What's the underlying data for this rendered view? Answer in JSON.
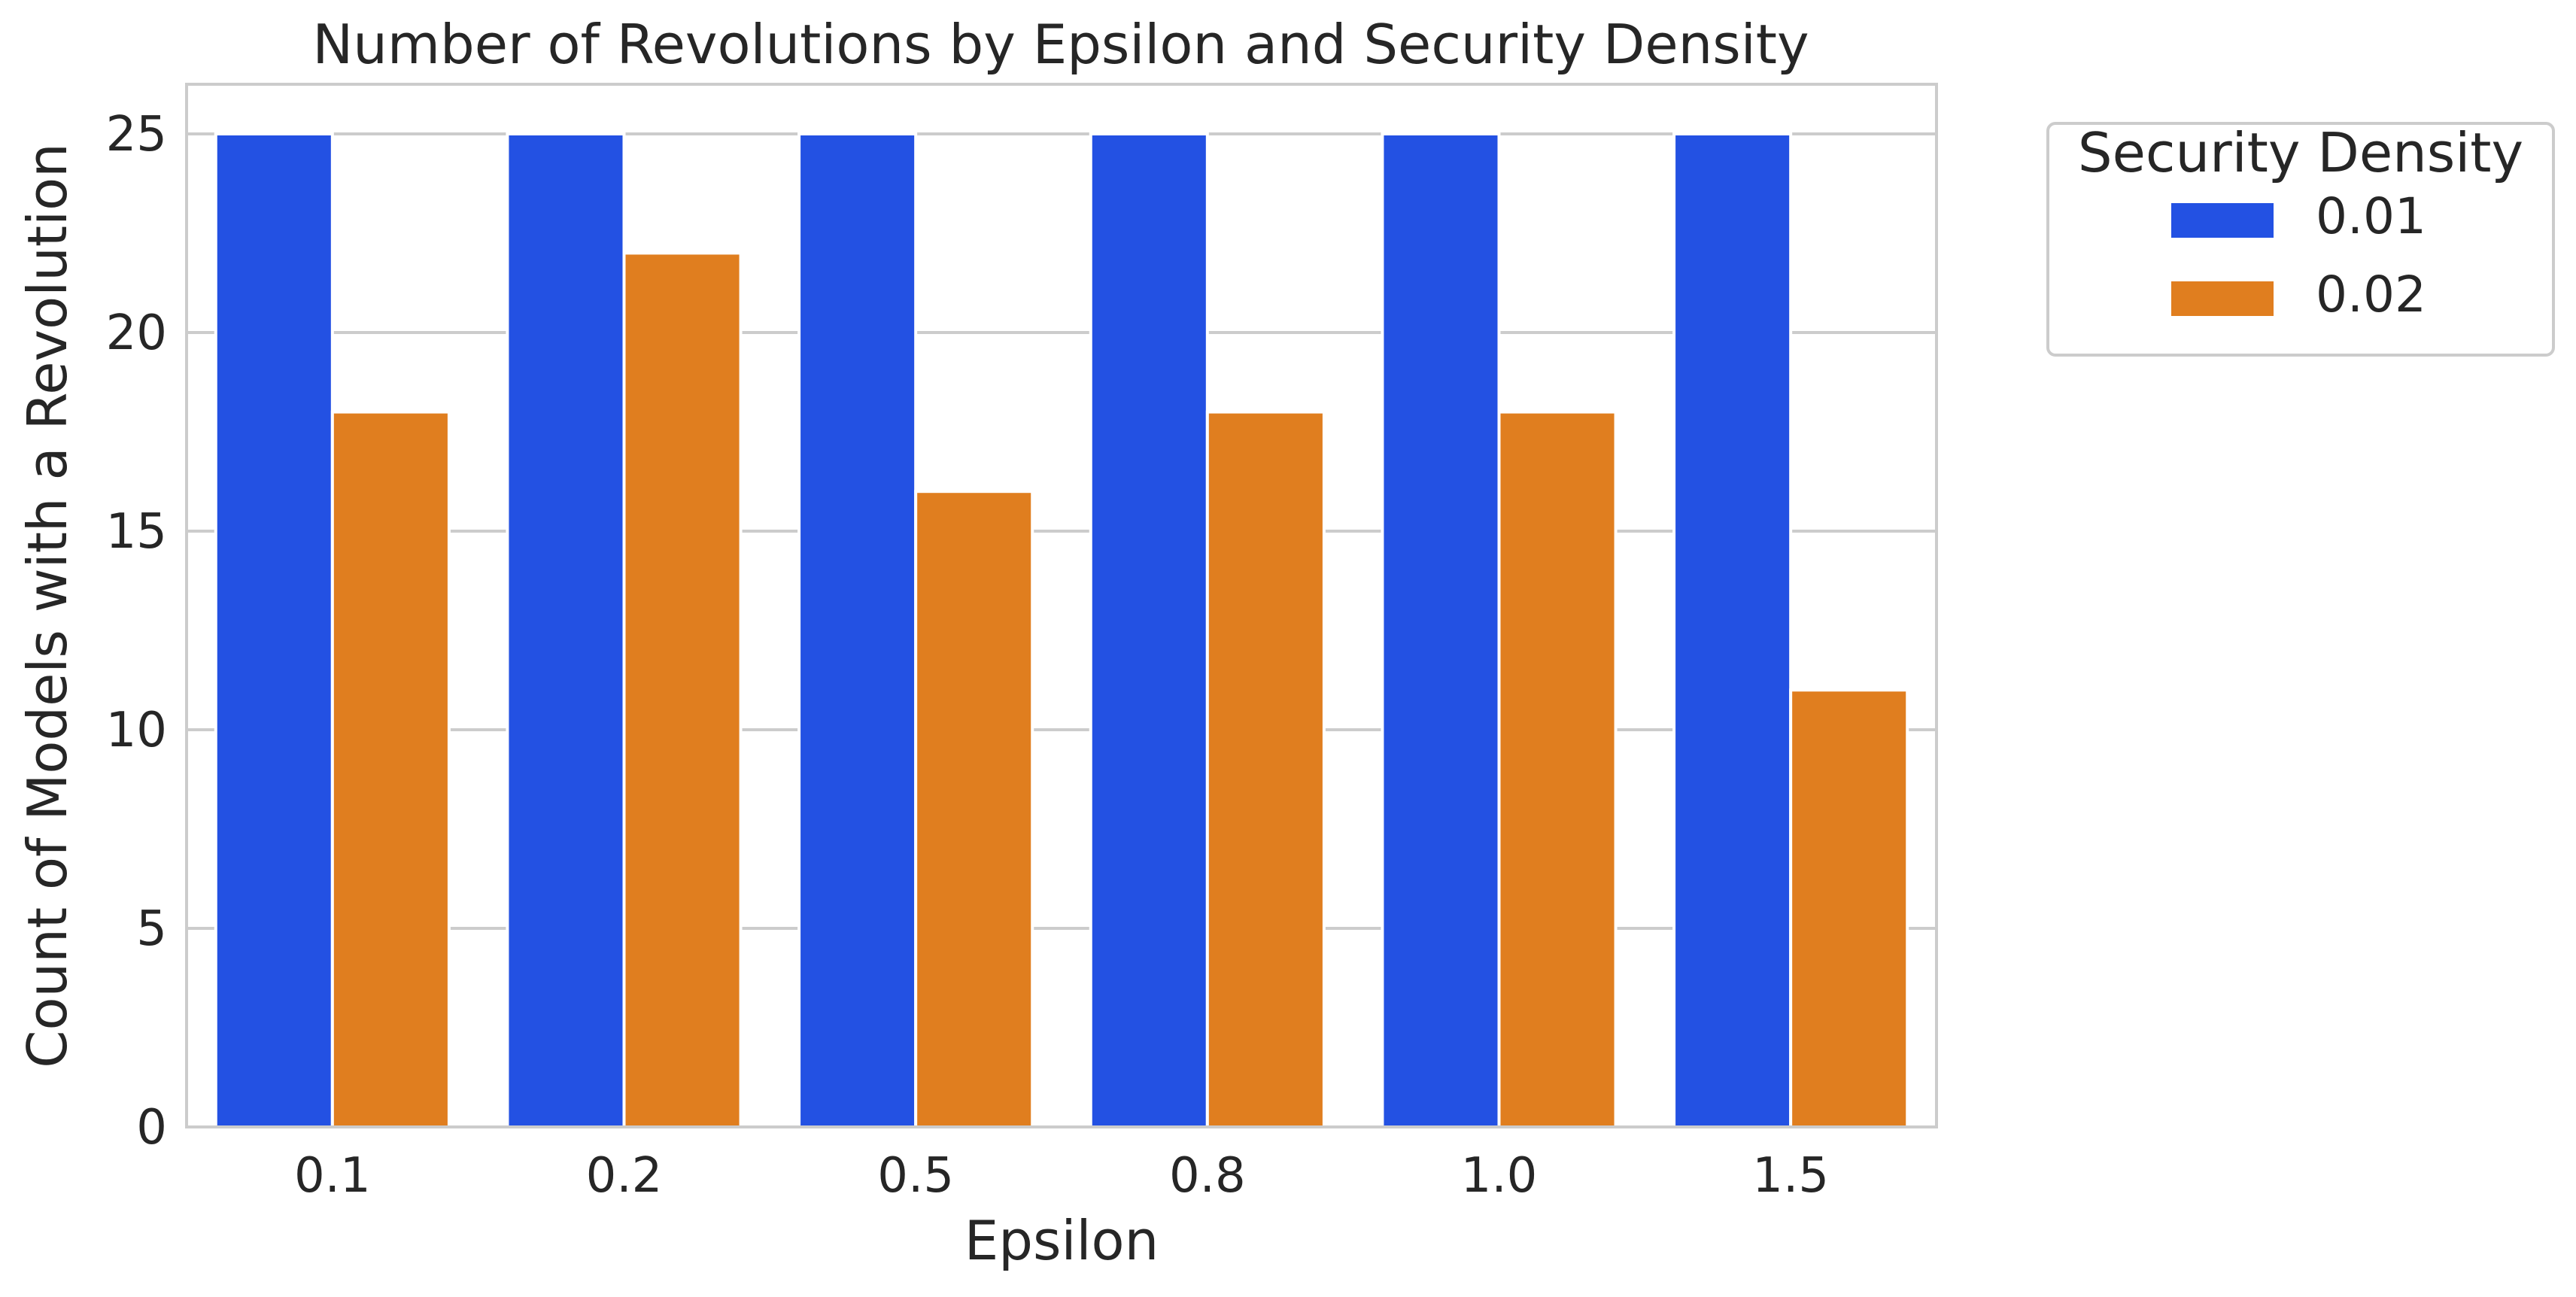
{
  "chart_data": {
    "type": "bar",
    "title": "Number of Revolutions by Epsilon and Security Density",
    "xlabel": "Epsilon",
    "ylabel": "Count of Models with a Revolution",
    "categories": [
      "0.1",
      "0.2",
      "0.5",
      "0.8",
      "1.0",
      "1.5"
    ],
    "series": [
      {
        "name": "0.01",
        "color": "#2351e3",
        "values": [
          25,
          25,
          25,
          25,
          25,
          25
        ]
      },
      {
        "name": "0.02",
        "color": "#e07e1f",
        "values": [
          18,
          22,
          16,
          18,
          18,
          11
        ]
      }
    ],
    "ylim": [
      0,
      26.25
    ],
    "yticks": [
      0,
      5,
      10,
      15,
      20,
      25
    ],
    "grid": true,
    "legend": {
      "title": "Security Density",
      "placement": "outside-right-top"
    }
  }
}
